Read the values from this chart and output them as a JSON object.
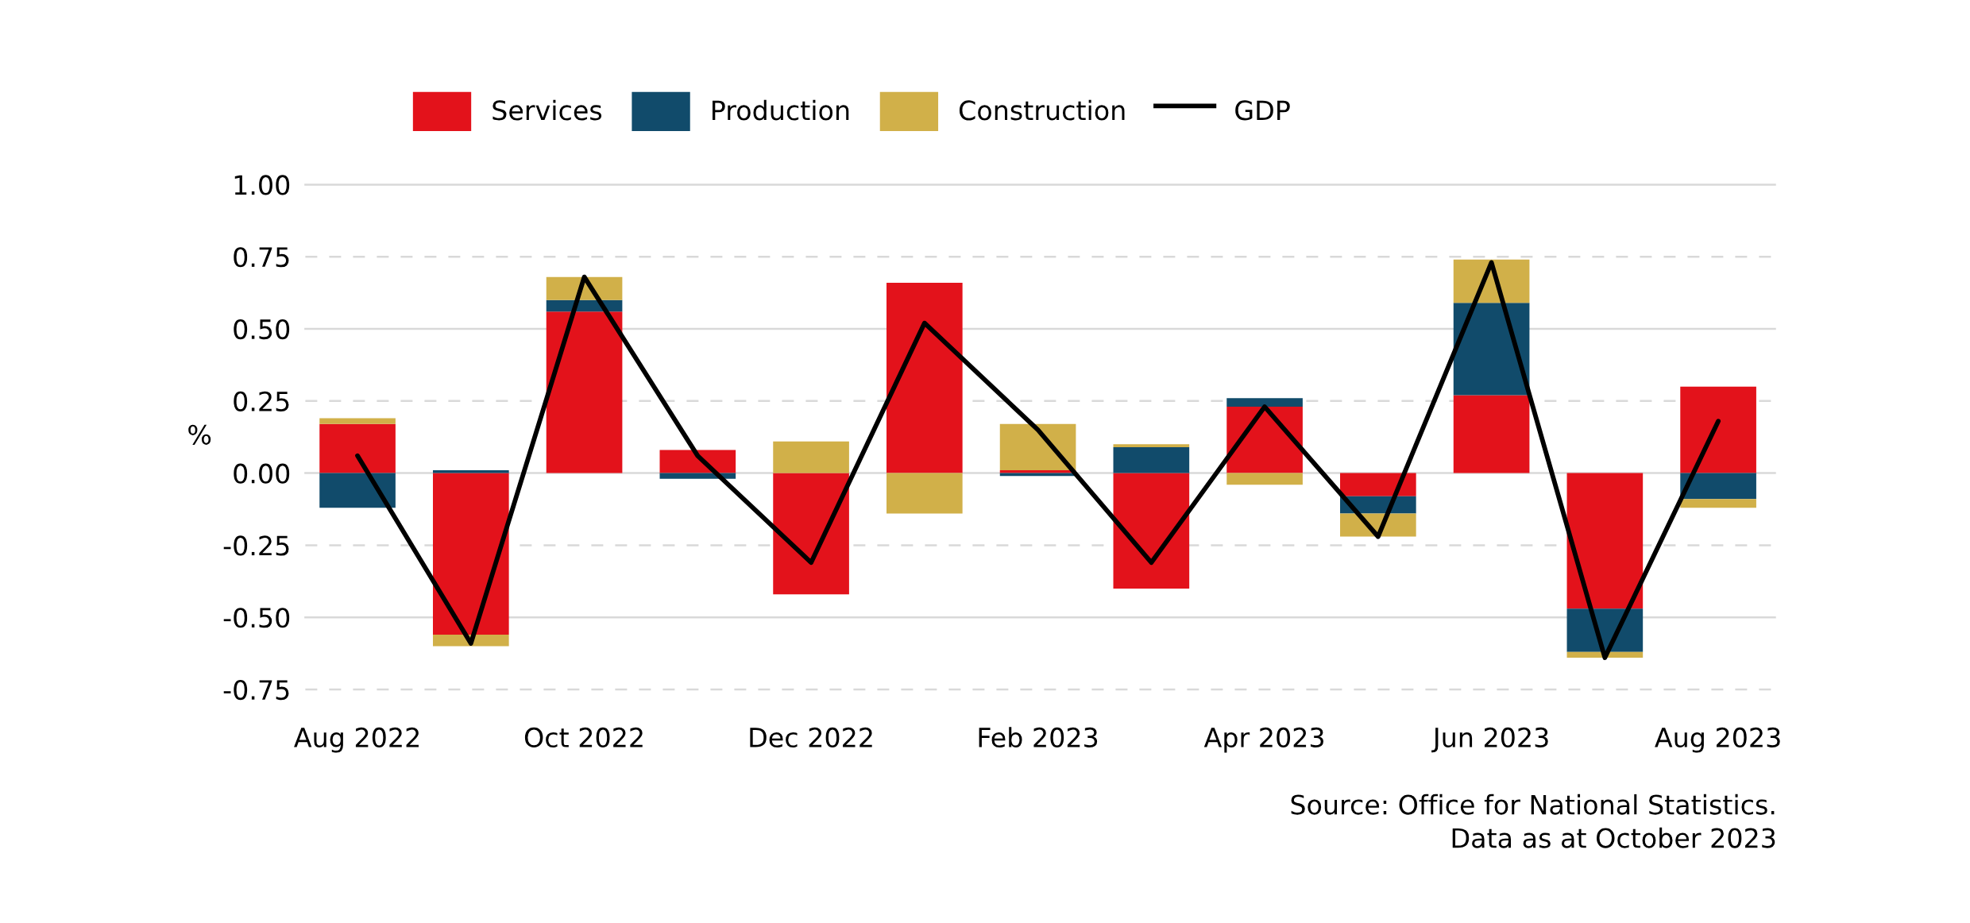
{
  "chart_data": {
    "type": "bar",
    "stacked": true,
    "categories": [
      "Aug 2022",
      null,
      "Oct 2022",
      null,
      "Dec 2022",
      null,
      "Feb 2023",
      null,
      "Apr 2023",
      null,
      "Jun 2023",
      null,
      "Aug 2023"
    ],
    "series": [
      {
        "name": "Services",
        "color": "#e3121b",
        "values": [
          0.17,
          -0.56,
          0.56,
          0.08,
          -0.42,
          0.66,
          0.01,
          -0.4,
          0.23,
          -0.08,
          0.27,
          -0.47,
          0.3
        ]
      },
      {
        "name": "Production",
        "color": "#114b6b",
        "values": [
          -0.12,
          0.01,
          0.04,
          -0.02,
          null,
          null,
          -0.01,
          0.09,
          0.03,
          -0.06,
          0.32,
          -0.15,
          -0.09
        ]
      },
      {
        "name": "Construction",
        "color": "#d1b049",
        "values": [
          0.02,
          -0.04,
          0.08,
          null,
          0.11,
          -0.14,
          0.16,
          0.01,
          -0.04,
          -0.08,
          0.15,
          -0.02,
          -0.03
        ]
      },
      {
        "name": "GDP",
        "type": "line",
        "color": "#000000",
        "values": [
          0.06,
          -0.59,
          0.68,
          0.06,
          -0.31,
          0.52,
          0.15,
          -0.31,
          0.23,
          -0.22,
          0.73,
          -0.64,
          0.18
        ]
      }
    ],
    "ylabel": "%",
    "ylim": [
      -0.75,
      1.0
    ],
    "yticks": [
      {
        "value": -0.75,
        "label": "-0.75"
      },
      {
        "value": -0.5,
        "label": "-0.50"
      },
      {
        "value": -0.25,
        "label": "-0.25"
      },
      {
        "value": 0,
        "label": "0.00"
      },
      {
        "value": 0.25,
        "label": "0.25"
      },
      {
        "value": 0.5,
        "label": "0.50"
      },
      {
        "value": 0.75,
        "label": "0.75"
      },
      {
        "value": 1.0,
        "label": "1.00"
      }
    ],
    "grid": "y",
    "legend": "top",
    "annotations": [
      "Source: Office for National Statistics.",
      "Data as at October 2023"
    ]
  }
}
